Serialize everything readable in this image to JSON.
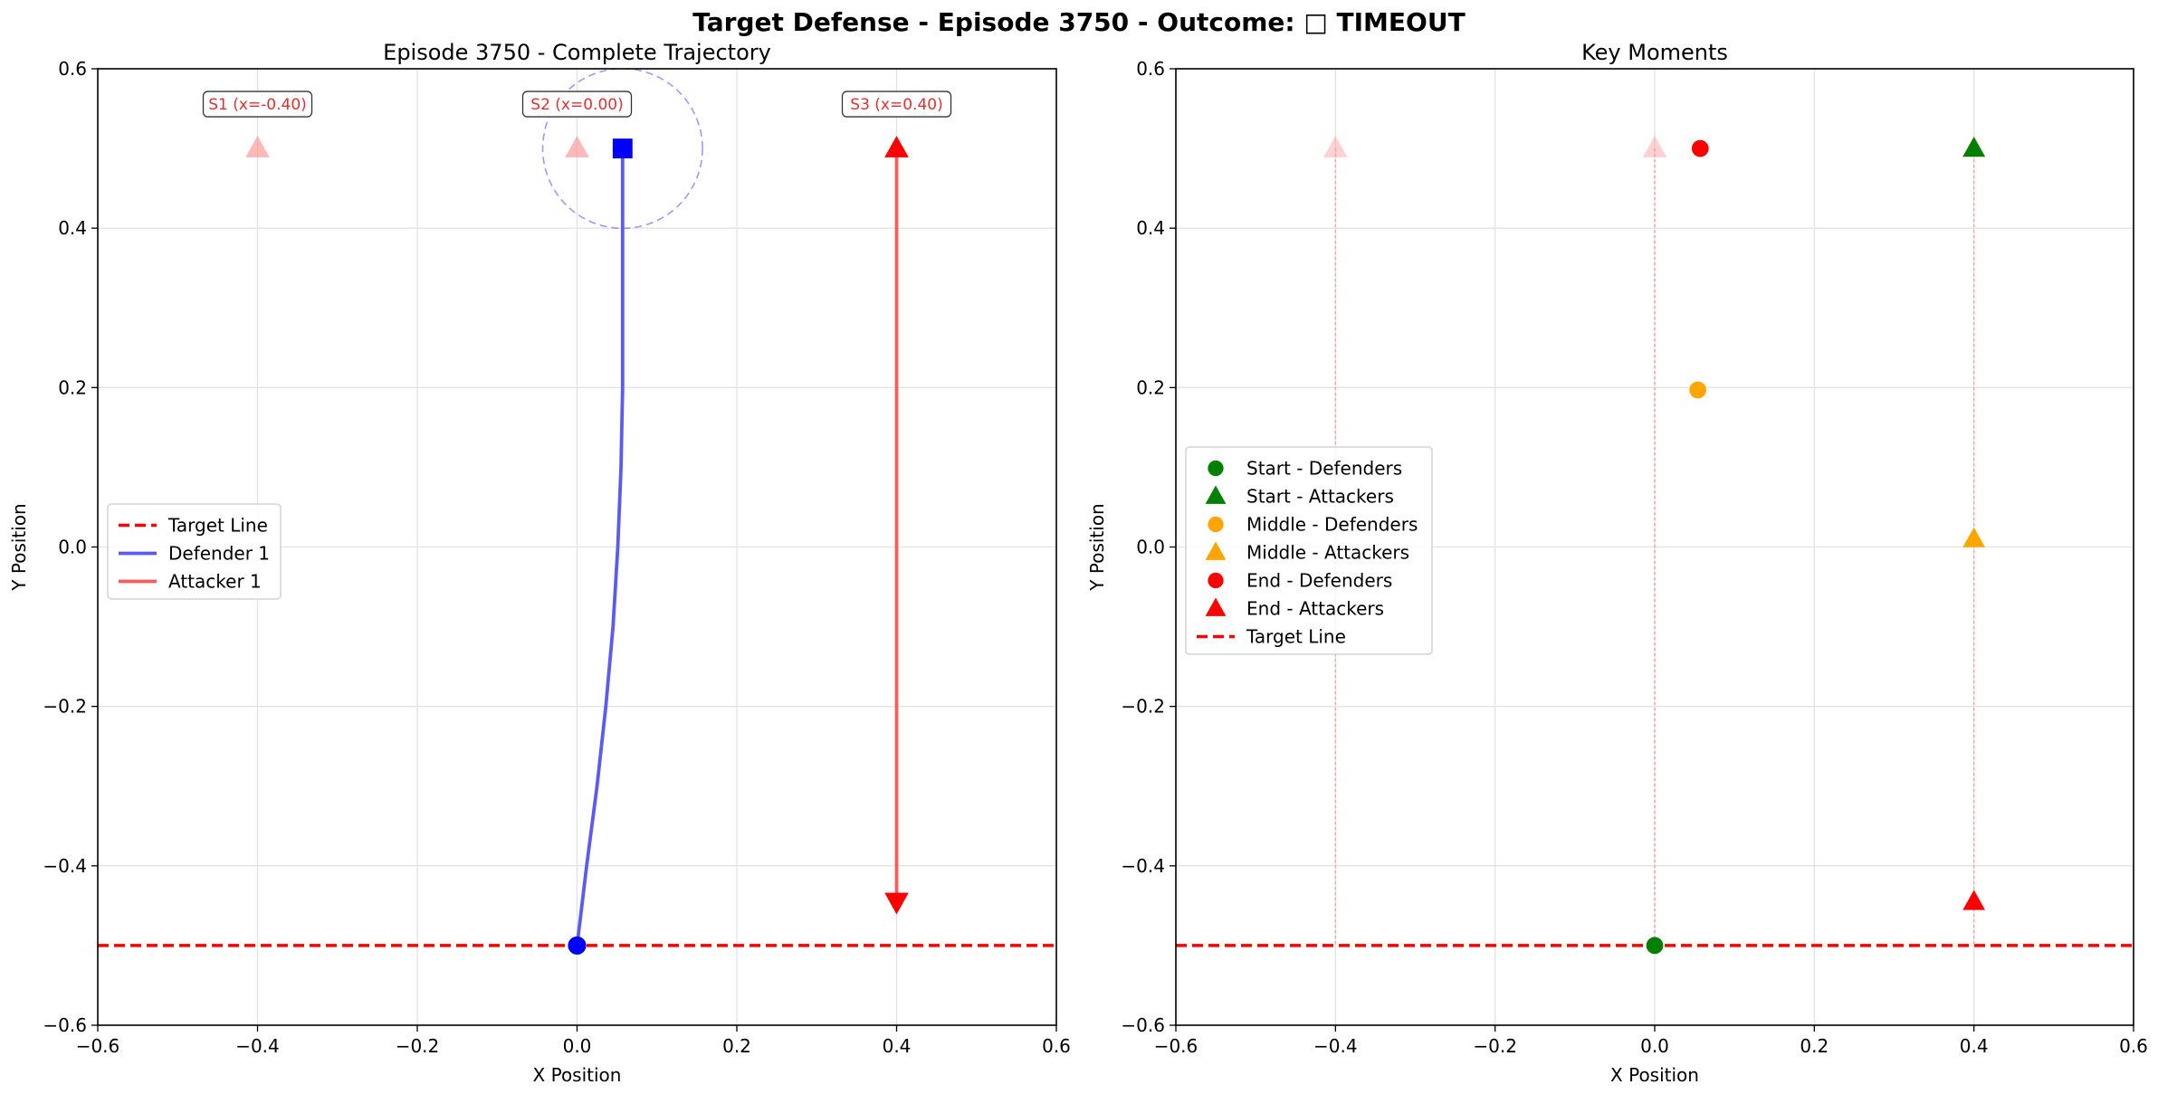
{
  "figure": {
    "suptitle": "Target Defense - Episode 3750 - Outcome: □ TIMEOUT"
  },
  "chart_data": [
    {
      "type": "line",
      "title": "Episode 3750 - Complete Trajectory",
      "xlabel": "X Position",
      "ylabel": "Y Position",
      "xlim": [
        -0.6,
        0.6
      ],
      "ylim": [
        -0.6,
        0.6
      ],
      "xticks": [
        "−0.6",
        "−0.4",
        "−0.2",
        "0.0",
        "0.2",
        "0.4",
        "0.6"
      ],
      "yticks": [
        "−0.6",
        "−0.4",
        "−0.2",
        "0.0",
        "0.2",
        "0.4",
        "0.6"
      ],
      "grid": true,
      "legend_position": "center-left",
      "target_line": {
        "y": -0.5,
        "color": "#ff0000",
        "style": "dashed",
        "label": "Target Line"
      },
      "stations": [
        {
          "label": "S1 (x=-0.40)",
          "x": -0.4,
          "y": 0.5
        },
        {
          "label": "S2 (x=0.00)",
          "x": 0.0,
          "y": 0.5
        },
        {
          "label": "S3 (x=0.40)",
          "x": 0.4,
          "y": 0.5
        }
      ],
      "capture_circle": {
        "center": [
          0.057,
          0.5
        ],
        "radius": 0.1,
        "color": "#6f6fff"
      },
      "series": [
        {
          "name": "Defender 1",
          "color": "#5a5af5",
          "x": [
            0.0,
            0.012,
            0.025,
            0.036,
            0.045,
            0.051,
            0.055,
            0.057,
            0.057
          ],
          "y": [
            -0.5,
            -0.4,
            -0.3,
            -0.2,
            -0.1,
            0.0,
            0.1,
            0.2,
            0.5
          ],
          "start_marker": {
            "shape": "circle",
            "color": "#0000ff"
          },
          "end_marker": {
            "shape": "square",
            "color": "#0000ff"
          }
        },
        {
          "name": "Attacker 1",
          "color": "#ff5a5a",
          "x": [
            0.4,
            0.4
          ],
          "y": [
            0.5,
            -0.445
          ],
          "start_marker": {
            "shape": "triangle-up",
            "color": "#ff0000"
          },
          "end_marker": {
            "shape": "triangle-down",
            "color": "#ff0000"
          }
        }
      ]
    },
    {
      "type": "scatter",
      "title": "Key Moments",
      "xlabel": "X Position",
      "ylabel": "Y Position",
      "xlim": [
        -0.6,
        0.6
      ],
      "ylim": [
        -0.6,
        0.6
      ],
      "xticks": [
        "−0.6",
        "−0.4",
        "−0.2",
        "0.0",
        "0.2",
        "0.4",
        "0.6"
      ],
      "yticks": [
        "−0.6",
        "−0.4",
        "−0.2",
        "0.0",
        "0.2",
        "0.4",
        "0.6"
      ],
      "grid": true,
      "legend_position": "center-left",
      "station_guides_x": [
        -0.4,
        0.0,
        0.4
      ],
      "target_line": {
        "y": -0.5,
        "color": "#ff0000",
        "style": "dashed",
        "label": "Target Line"
      },
      "series": [
        {
          "name": "Start - Defenders",
          "shape": "circle",
          "color": "#008000",
          "x": [
            0.0
          ],
          "y": [
            -0.5
          ]
        },
        {
          "name": "Start - Attackers",
          "shape": "triangle-up",
          "color": "#008000",
          "x": [
            0.4
          ],
          "y": [
            0.5
          ]
        },
        {
          "name": "Middle - Defenders",
          "shape": "circle",
          "color": "#ffa500",
          "x": [
            0.054
          ],
          "y": [
            0.197
          ]
        },
        {
          "name": "Middle - Attackers",
          "shape": "triangle-up",
          "color": "#ffa500",
          "x": [
            0.4
          ],
          "y": [
            0.01
          ]
        },
        {
          "name": "End - Defenders",
          "shape": "circle",
          "color": "#ff0000",
          "x": [
            0.057
          ],
          "y": [
            0.5
          ]
        },
        {
          "name": "End - Attackers",
          "shape": "triangle-up",
          "color": "#ff0000",
          "x": [
            0.4
          ],
          "y": [
            -0.445
          ]
        }
      ]
    }
  ]
}
